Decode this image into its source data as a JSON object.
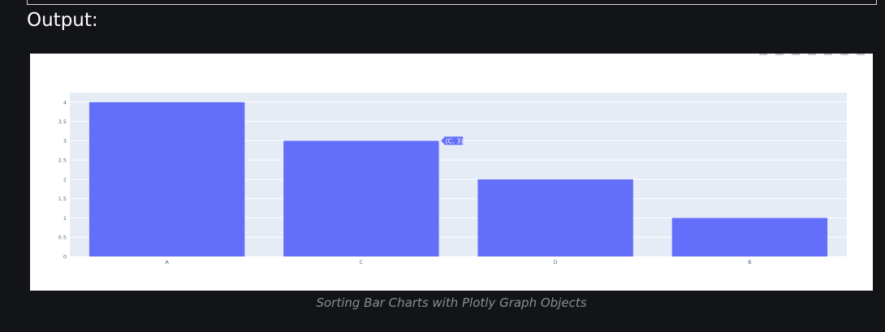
{
  "section": {
    "label": "Output:"
  },
  "caption": "Sorting Bar Charts with Plotly Graph Objects",
  "colors": {
    "bar": "#636efa",
    "plot_bg": "#e5ecf6",
    "paper_bg": "#ffffff",
    "page_bg": "#131417"
  },
  "hover": {
    "text": "(C, 3)",
    "category": "C",
    "value": 3
  },
  "chart_data": {
    "type": "bar",
    "categories": [
      "A",
      "C",
      "D",
      "B"
    ],
    "values": [
      4,
      3,
      2,
      1
    ],
    "ylim": [
      0,
      4.25
    ],
    "yticks": [
      "0",
      "0.5",
      "1",
      "1.5",
      "2",
      "2.5",
      "3",
      "3.5",
      "4"
    ],
    "grid": true,
    "legend": "none"
  }
}
